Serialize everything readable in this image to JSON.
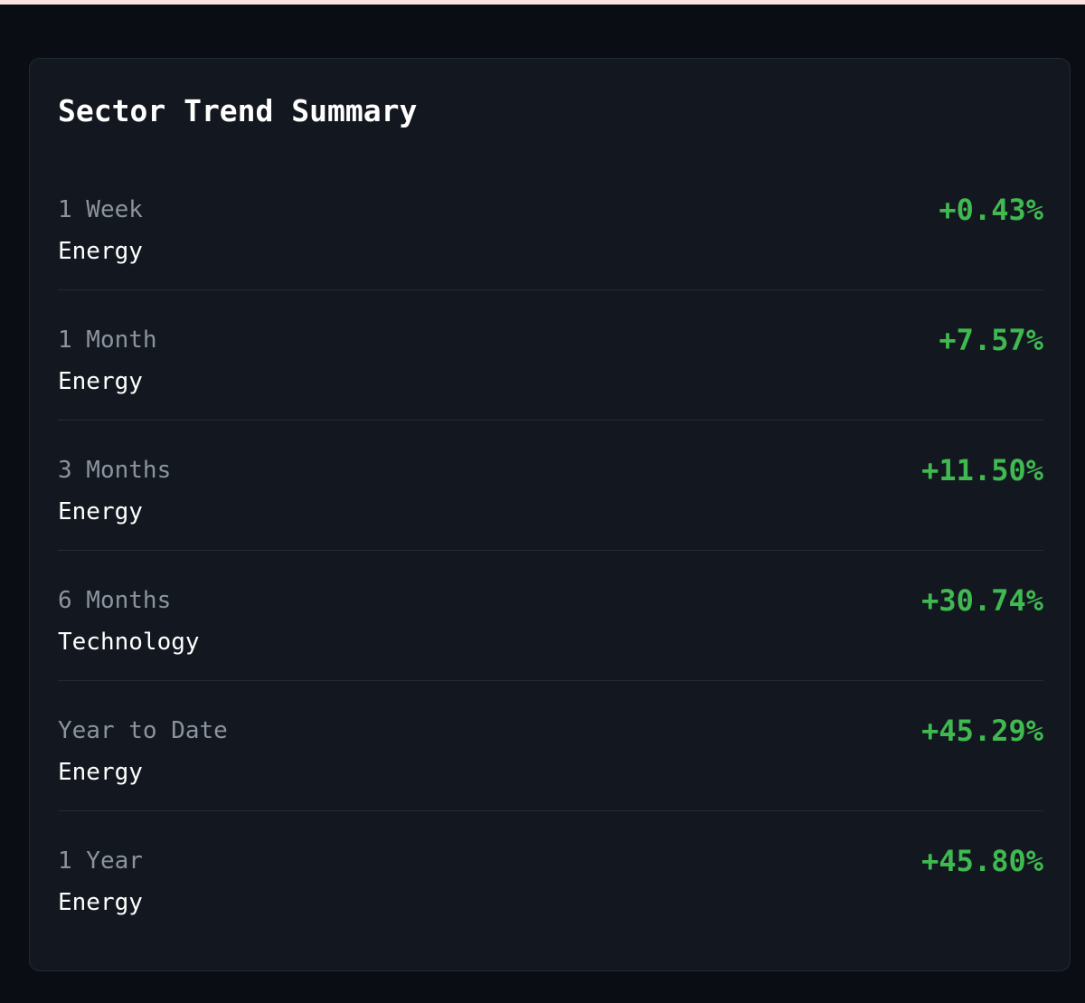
{
  "card": {
    "title": "Sector Trend Summary",
    "rows": [
      {
        "period": "1 Week",
        "sector": "Energy",
        "change": "+0.43%"
      },
      {
        "period": "1 Month",
        "sector": "Energy",
        "change": "+7.57%"
      },
      {
        "period": "3 Months",
        "sector": "Energy",
        "change": "+11.50%"
      },
      {
        "period": "6 Months",
        "sector": "Technology",
        "change": "+30.74%"
      },
      {
        "period": "Year to Date",
        "sector": "Energy",
        "change": "+45.29%"
      },
      {
        "period": "1 Year",
        "sector": "Energy",
        "change": "+45.80%"
      }
    ]
  },
  "colors": {
    "background": "#0a0e14",
    "card": "#131820",
    "positive": "#3fb950",
    "muted_text": "#8b949e",
    "primary_text": "#ffffff"
  }
}
